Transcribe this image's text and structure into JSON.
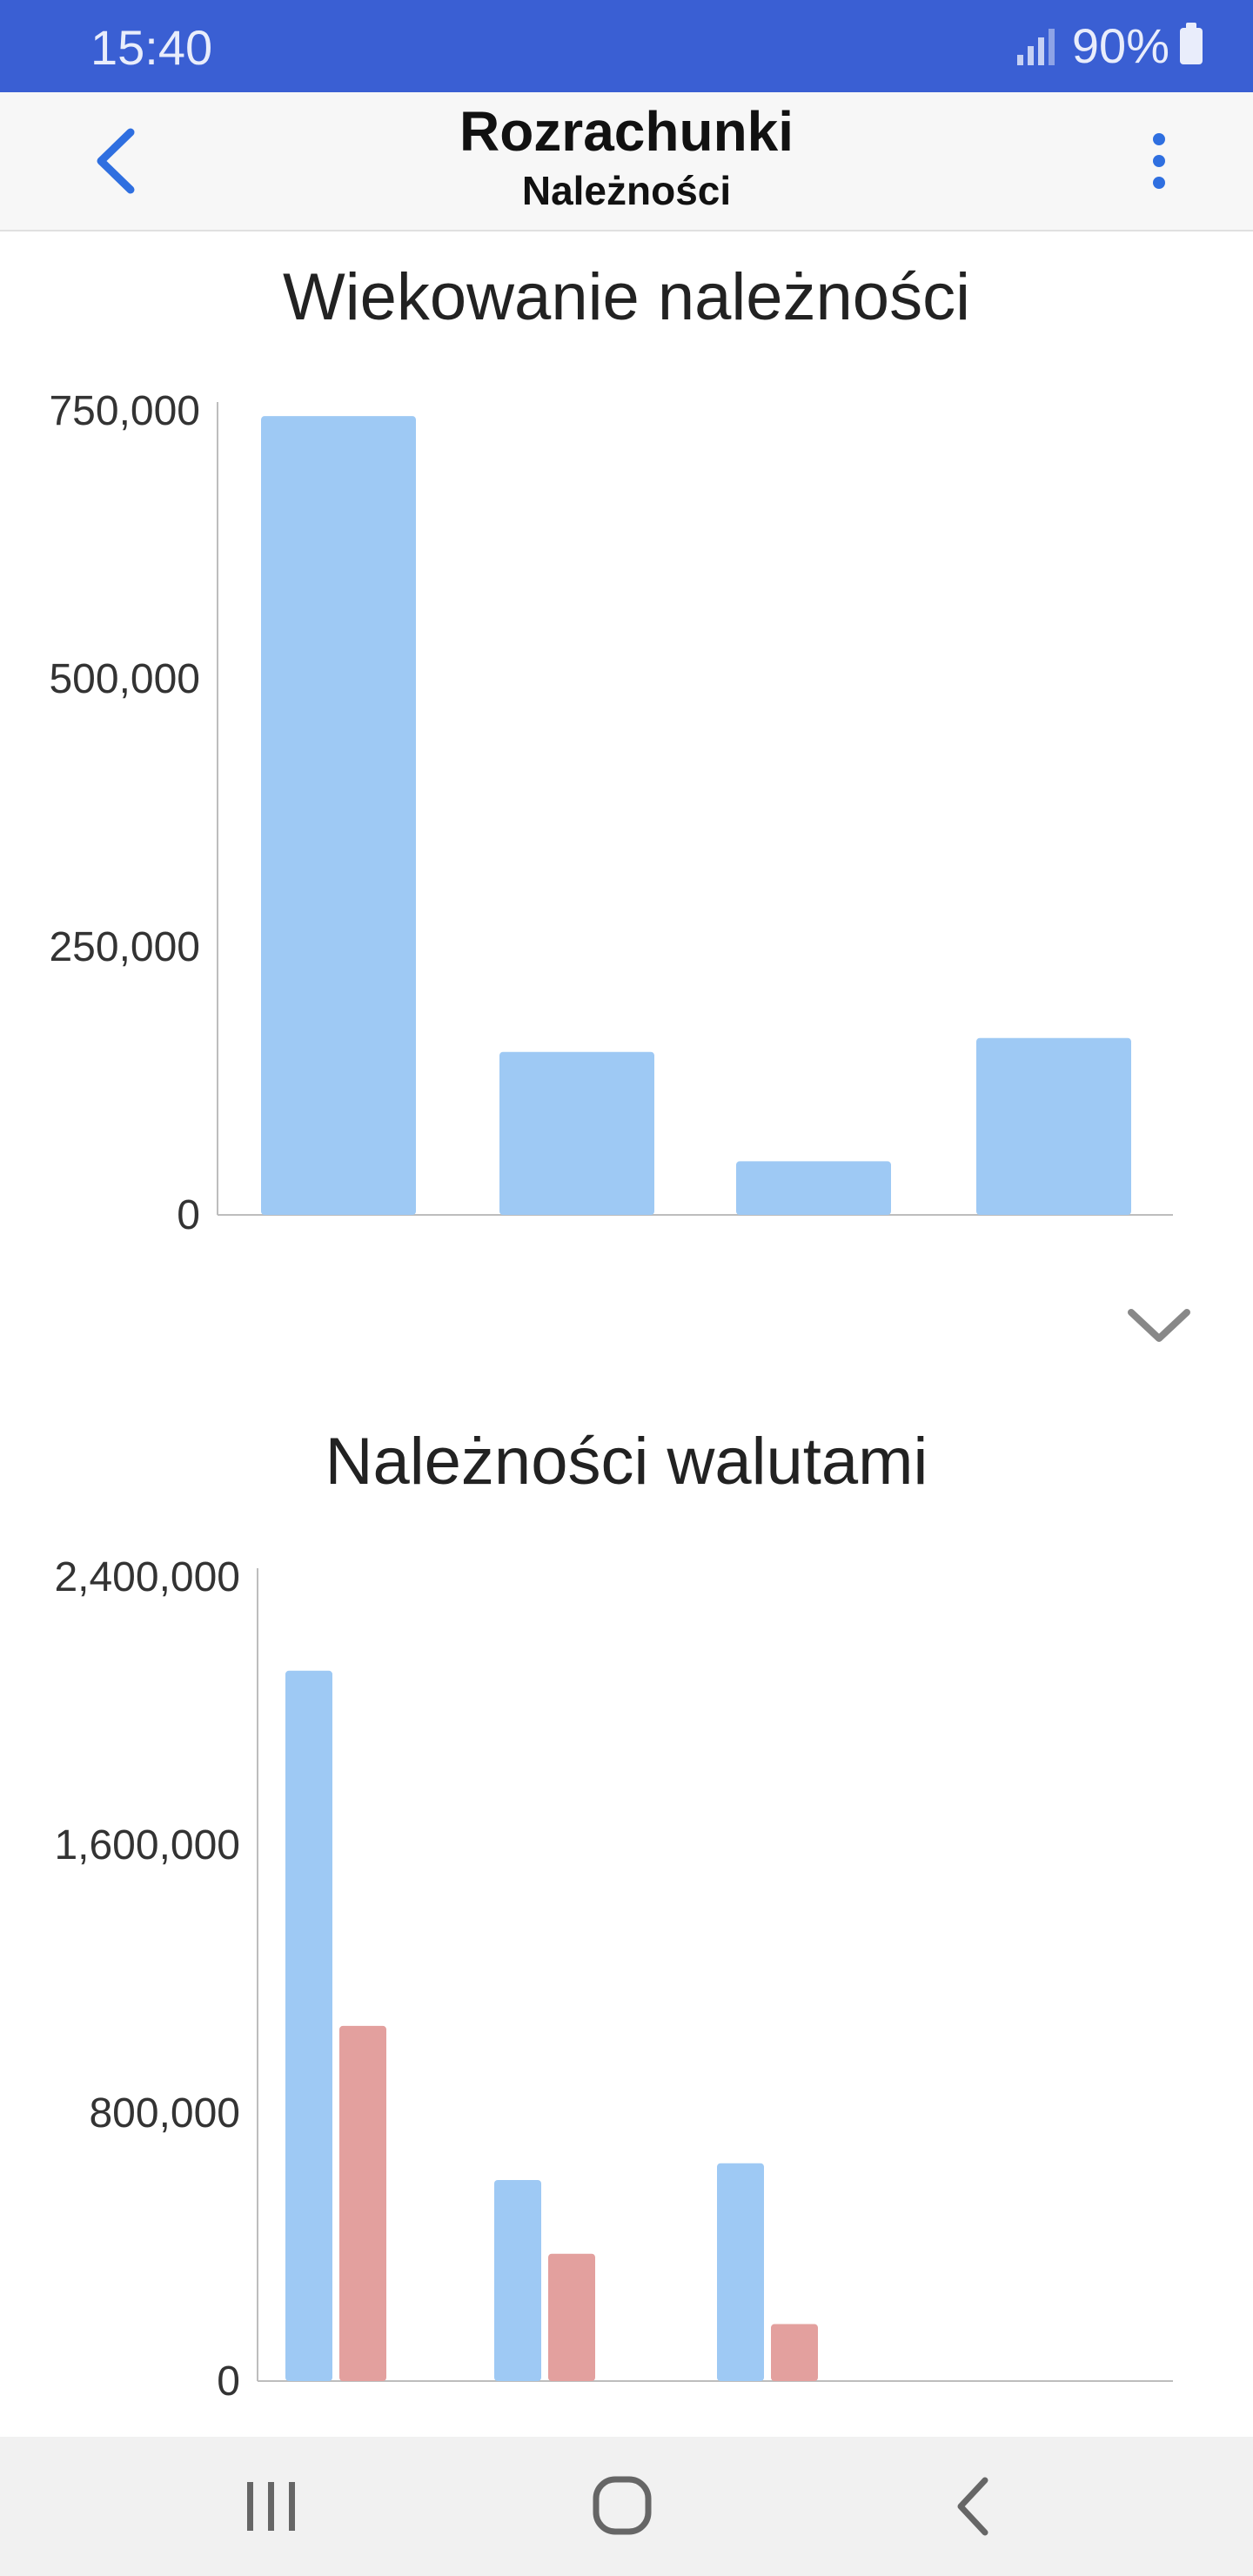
{
  "status_bar": {
    "time": "15:40",
    "battery": "90%"
  },
  "header": {
    "title": "Rozrachunki",
    "subtitle": "Należności",
    "back_icon": "chevron-left-icon",
    "menu_icon": "more-vertical-icon"
  },
  "colors": {
    "status_bar": "#3a5fd3",
    "accent": "#2f6fe0",
    "bar_blue": "#9ec9f4",
    "bar_red": "#e3a09e"
  },
  "chart_data": [
    {
      "type": "bar",
      "title": "Wiekowanie należności",
      "categories": [
        "",
        "",
        "",
        ""
      ],
      "values": [
        745000,
        152000,
        50000,
        165000
      ],
      "ylim": [
        0,
        750000
      ],
      "yticks": [
        0,
        250000,
        500000,
        750000
      ],
      "ytick_labels": [
        "0",
        "250,000",
        "500,000",
        "750,000"
      ],
      "grid": false,
      "legend": "none"
    },
    {
      "type": "bar",
      "title": "Należności walutami",
      "categories": [
        "",
        "",
        "",
        ""
      ],
      "series": [
        {
          "values": [
            2120000,
            600000,
            650000,
            0
          ]
        },
        {
          "values": [
            1060000,
            380000,
            170000,
            0
          ]
        }
      ],
      "ylim": [
        0,
        2400000
      ],
      "yticks": [
        0,
        800000,
        1600000,
        2400000
      ],
      "ytick_labels": [
        "0",
        "800,000",
        "1,600,000",
        "2,400,000"
      ],
      "grid": false,
      "legend": "none"
    }
  ],
  "expand_icon": "chevron-down-icon",
  "nav_bar": {
    "recents_icon": "recents-icon",
    "home_icon": "home-icon",
    "back_icon": "back-icon"
  }
}
